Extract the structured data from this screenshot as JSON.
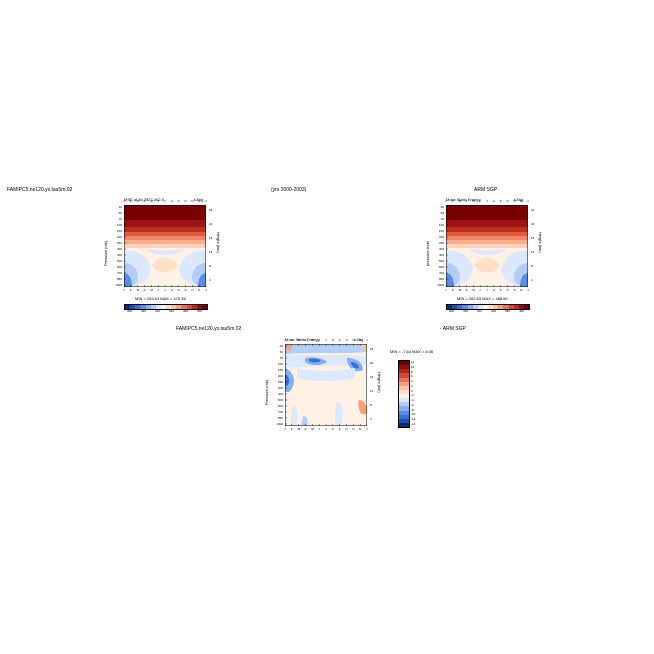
{
  "header": {
    "left_case": "FAMIPC5.ne120.ys.tau5m.02",
    "period": "(yrs 2000-2003)",
    "right_obs": "ARM SGP",
    "diff_case": "FAMIPC5.ne120.ys.tau5m.02",
    "diff_obs": "- ARM SGP"
  },
  "panels": {
    "left": {
      "title_left": "MSE at 36.2827,262.5",
      "units": "kJ/kg",
      "ylabel": "Pressure (mb)",
      "ylabel_right": "Height (km)",
      "minmax": "MIN = 263.63 MAX = 470.35"
    },
    "right": {
      "title_left": "Moist Static Energy",
      "units": "kJ/kg",
      "ylabel": "pressure level",
      "ylabel_right": "Height (km)",
      "minmax": "MIN = 262.63 MAX = 488.60"
    },
    "diff": {
      "title_left": "Moist Static Energy",
      "units": "kJ/kg",
      "ylabel": "Pressure (mb)",
      "ylabel_right": "Height (km)",
      "minmax": "MIN = -7.64 MAX = 6.06"
    }
  },
  "chart_data": [
    {
      "type": "heatmap",
      "title": "MSE at 36.2827,262.5",
      "units": "kJ/kg",
      "x_ticks": [
        "J",
        "F",
        "M",
        "A",
        "M",
        "J",
        "J",
        "A",
        "S",
        "O",
        "N",
        "D",
        "J"
      ],
      "y_ticks_pressure": [
        "20",
        "50",
        "70",
        "100",
        "150",
        "200",
        "250",
        "300",
        "400",
        "500",
        "600",
        "700",
        "850",
        "1000"
      ],
      "y_ticks_height": [
        "24",
        "20",
        "16",
        "12",
        "8",
        "4"
      ],
      "colorbar_labels": [
        "300",
        "320",
        "340",
        "360",
        "380",
        "400"
      ],
      "min": 263.63,
      "max": 470.35
    },
    {
      "type": "heatmap",
      "title": "Moist Static Energy",
      "units": "kJ/kg",
      "x_ticks": [
        "J",
        "F",
        "M",
        "A",
        "M",
        "J",
        "J",
        "A",
        "S",
        "O",
        "N",
        "D",
        "J"
      ],
      "y_ticks_pressure": [
        "20",
        "50",
        "70",
        "100",
        "150",
        "200",
        "250",
        "300",
        "400",
        "500",
        "600",
        "700",
        "850",
        "1000"
      ],
      "y_ticks_height": [
        "24",
        "20",
        "16",
        "12",
        "8",
        "4"
      ],
      "colorbar_labels": [
        "300",
        "320",
        "340",
        "360",
        "380",
        "400"
      ],
      "min": 262.63,
      "max": 488.6
    },
    {
      "type": "heatmap",
      "title": "Moist Static Energy",
      "units": "kJ/kg",
      "x_ticks": [
        "J",
        "F",
        "M",
        "A",
        "M",
        "J",
        "J",
        "A",
        "S",
        "O",
        "N",
        "D",
        "J"
      ],
      "y_ticks_pressure": [
        "20",
        "50",
        "70",
        "100",
        "150",
        "200",
        "250",
        "300",
        "400",
        "500",
        "600",
        "700",
        "850",
        "1000"
      ],
      "y_ticks_height": [
        "24",
        "20",
        "16",
        "12",
        "8",
        "4"
      ],
      "colorbar_labels": [
        "12",
        "10",
        "8",
        "6",
        "4",
        "2",
        "0",
        "-2",
        "-4",
        "-6",
        "-8",
        "-10",
        "-12",
        "-14"
      ],
      "min": -7.64,
      "max": 6.06
    }
  ],
  "colors": {
    "abs_scale": [
      "#08306b",
      "#1f4fb0",
      "#3a6fd8",
      "#5a8ee6",
      "#86aef0",
      "#b4cdf6",
      "#dce8fb",
      "#fff4e8",
      "#fde0c8",
      "#fbc4a2",
      "#f6a07c",
      "#e9735a",
      "#d44a35",
      "#b8261d",
      "#8f0e0e",
      "#6b0000"
    ],
    "diff_scale": [
      "#6b0000",
      "#8f0e0e",
      "#b8261d",
      "#d44a35",
      "#e9735a",
      "#f6a07c",
      "#fbc4a2",
      "#fde0c8",
      "#fff4e8",
      "#dce8fb",
      "#b4cdf6",
      "#86aef0",
      "#5a8ee6",
      "#3a6fd8",
      "#1f4fb0",
      "#08306b"
    ]
  }
}
